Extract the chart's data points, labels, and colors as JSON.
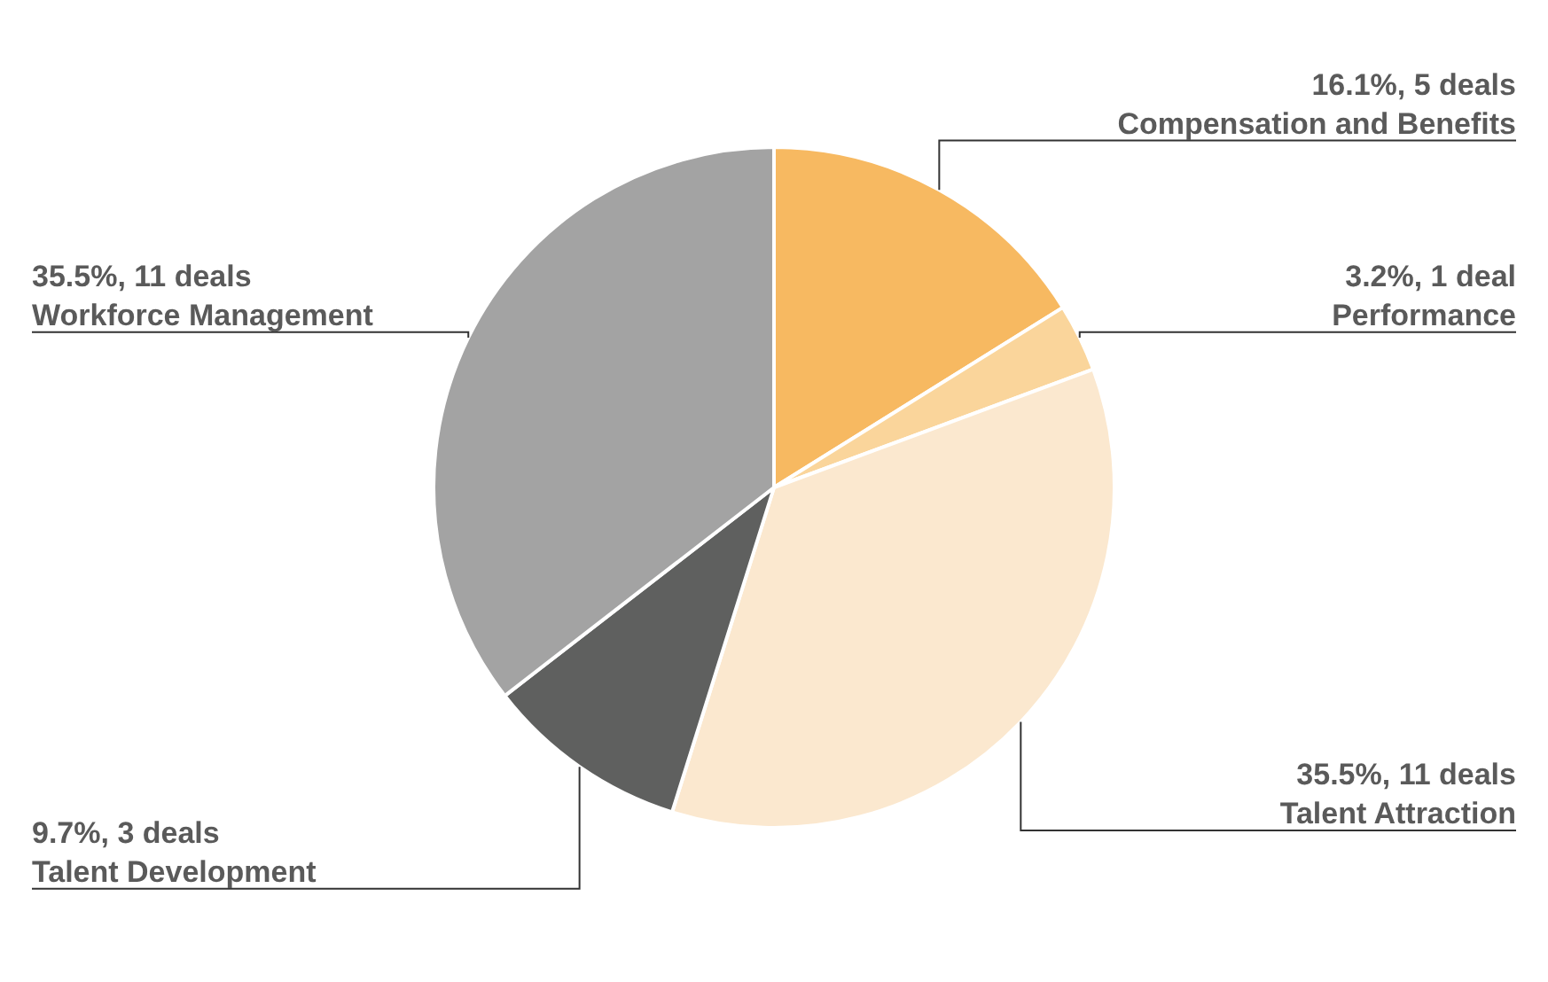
{
  "chart_data": {
    "type": "pie",
    "categories": [
      "Compensation and Benefits",
      "Performance",
      "Talent Attraction",
      "Talent Development",
      "Workforce Management"
    ],
    "values": [
      5,
      1,
      11,
      3,
      11
    ],
    "colors": [
      "#f7b961",
      "#fad59b",
      "#fbe8cf",
      "#5f605f",
      "#a3a3a3"
    ],
    "value_labels": [
      "16.1%, 5 deals",
      "3.2%, 1 deal",
      "35.5%, 11 deals",
      "9.7%, 3 deals",
      "35.5%, 11 deals"
    ],
    "legend": false
  }
}
